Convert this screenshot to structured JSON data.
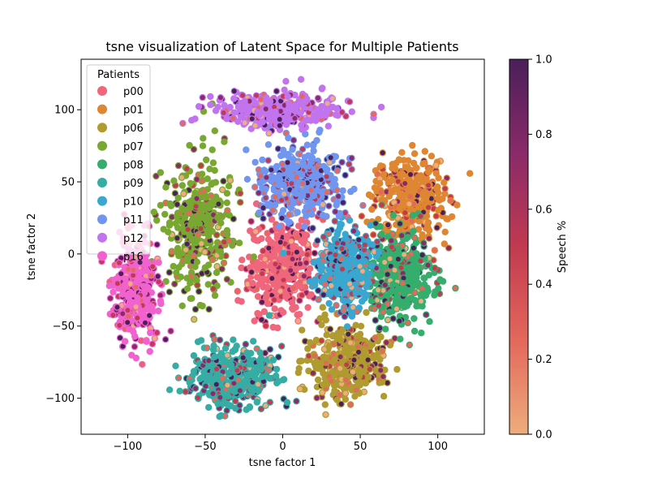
{
  "chart_data": {
    "type": "scatter",
    "title": "tsne visualization of Latent Space for Multiple Patients",
    "xlabel": "tsne factor 1",
    "ylabel": "tsne factor 2",
    "xlim": [
      -130,
      130
    ],
    "ylim": [
      -125,
      135
    ],
    "xticks": [
      -100,
      -50,
      0,
      50,
      100
    ],
    "yticks": [
      -100,
      -50,
      0,
      50,
      100
    ],
    "xtick_labels": [
      "−100",
      "−50",
      "0",
      "50",
      "100"
    ],
    "ytick_labels": [
      "−100",
      "−50",
      "0",
      "50",
      "100"
    ],
    "grid": false,
    "legend": {
      "title": "Patients",
      "placement": "top-left"
    },
    "series": [
      {
        "name": "p00",
        "color": "#f0677d",
        "center": [
          0,
          -10
        ],
        "spread": [
          20,
          32
        ]
      },
      {
        "name": "p01",
        "color": "#de8631",
        "center": [
          82,
          38
        ],
        "spread": [
          20,
          26
        ]
      },
      {
        "name": "p06",
        "color": "#b09b30",
        "center": [
          42,
          -75
        ],
        "spread": [
          22,
          22
        ]
      },
      {
        "name": "p07",
        "color": "#79a832",
        "center": [
          -55,
          20
        ],
        "spread": [
          20,
          40
        ]
      },
      {
        "name": "p08",
        "color": "#34ad6d",
        "center": [
          75,
          -15
        ],
        "spread": [
          20,
          28
        ]
      },
      {
        "name": "p09",
        "color": "#36ada4",
        "center": [
          -35,
          -85
        ],
        "spread": [
          25,
          18
        ]
      },
      {
        "name": "p10",
        "color": "#39a7d0",
        "center": [
          40,
          -10
        ],
        "spread": [
          15,
          25
        ]
      },
      {
        "name": "p11",
        "color": "#7196f0",
        "center": [
          10,
          50
        ],
        "spread": [
          25,
          22
        ]
      },
      {
        "name": "p12",
        "color": "#c174ee",
        "center": [
          -5,
          100
        ],
        "spread": [
          35,
          10
        ]
      },
      {
        "name": "p16",
        "color": "#f262ce",
        "center": [
          -95,
          -25
        ],
        "spread": [
          13,
          30
        ]
      }
    ],
    "colorbar": {
      "label": "Speech %",
      "range": [
        0,
        1
      ],
      "ticks": [
        "0.0",
        "0.2",
        "0.4",
        "0.6",
        "0.8",
        "1.0"
      ],
      "colors": [
        "#edad7c",
        "#e4685b",
        "#c13a50",
        "#8a2a69",
        "#4a1f5a"
      ]
    }
  }
}
